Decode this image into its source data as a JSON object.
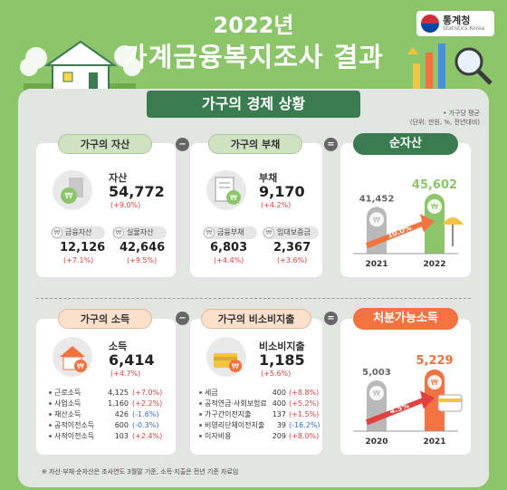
{
  "header": {
    "year": "2022년",
    "title": "가계금융복지조사 결과",
    "logo_name": "통계청",
    "logo_sub": "Statistics Korea"
  },
  "banner": "가구의 경제 상황",
  "note": [
    "• 가구당 평균",
    "(단위: 만원, %, 전년대비)"
  ],
  "assets": {
    "pill": "가구의 자산",
    "label": "자산",
    "value": "54,772",
    "change": "(+9.0%)",
    "sub": [
      {
        "label": "금융자산",
        "value": "12,126",
        "change": "(+7.1%)"
      },
      {
        "label": "실물자산",
        "value": "42,646",
        "change": "(+9.5%)"
      }
    ]
  },
  "debt": {
    "pill": "가구의 부채",
    "label": "부채",
    "value": "9,170",
    "change": "(+4.2%)",
    "sub": [
      {
        "label": "금융부채",
        "value": "6,803",
        "change": "(+4.4%)"
      },
      {
        "label": "임대보증금",
        "value": "2,367",
        "change": "(+3.6%)"
      }
    ]
  },
  "net_assets": {
    "pill": "순자산",
    "growth": "10.0%"
  },
  "income": {
    "pill": "가구의 소득",
    "label": "소득",
    "value": "6,414",
    "change": "(+4.7%)",
    "items": [
      {
        "name": "근로소득",
        "value": "4,125",
        "change": "(+7.0%)",
        "dir": "pos"
      },
      {
        "name": "사업소득",
        "value": "1,160",
        "change": "(+2.2%)",
        "dir": "pos"
      },
      {
        "name": "재산소득",
        "value": "426",
        "change": "(-1.6%)",
        "dir": "neg"
      },
      {
        "name": "공적이전소득",
        "value": "600",
        "change": "(-0.3%)",
        "dir": "neg"
      },
      {
        "name": "사적이전소득",
        "value": "103",
        "change": "(+2.4%)",
        "dir": "pos"
      }
    ]
  },
  "nonconsumption": {
    "pill": "가구의 비소비지출",
    "label": "비소비지출",
    "value": "1,185",
    "change": "(+5.6%)",
    "items": [
      {
        "name": "세금",
        "value": "400",
        "change": "(+8.8%)",
        "dir": "pos"
      },
      {
        "name": "공적연금·사회보험료",
        "value": "400",
        "change": "(+5.2%)",
        "dir": "pos"
      },
      {
        "name": "가구간이전지출",
        "value": "137",
        "change": "(+1.5%)",
        "dir": "pos"
      },
      {
        "name": "비영리단체이전지출",
        "value": "39",
        "change": "(-16.2%)",
        "dir": "neg"
      },
      {
        "name": "이자비용",
        "value": "209",
        "change": "(+8.0%)",
        "dir": "pos"
      }
    ]
  },
  "disposable": {
    "pill": "처분가능소득",
    "growth": "4.5%"
  },
  "footer": "※ 자산·부채·순자산은 조사연도 3월말 기준, 소득·지출은 전년 기준 자료임",
  "chart_data": [
    {
      "type": "bar",
      "title": "순자산",
      "categories": [
        "2021",
        "2022"
      ],
      "values": [
        41452,
        45602
      ],
      "labels": [
        "41,452",
        "45,602"
      ],
      "colors": [
        "#b9b9b9",
        "#8cc56a"
      ]
    },
    {
      "type": "bar",
      "title": "처분가능소득",
      "categories": [
        "2020",
        "2021"
      ],
      "values": [
        5003,
        5229
      ],
      "labels": [
        "5,003",
        "5,229"
      ],
      "colors": [
        "#b9b9b9",
        "#f2733f"
      ]
    }
  ],
  "colors": {
    "background": "#8cc56a",
    "panel": "#e3e5e2",
    "accent_green": "#3a7c4f",
    "accent_orange": "#f2733f",
    "positive": "#e0413e",
    "negative": "#2f6fd0"
  },
  "icons": {
    "logo": "taegeuk-icon",
    "magnifier": "magnifier-icon",
    "house": "house-icon"
  }
}
